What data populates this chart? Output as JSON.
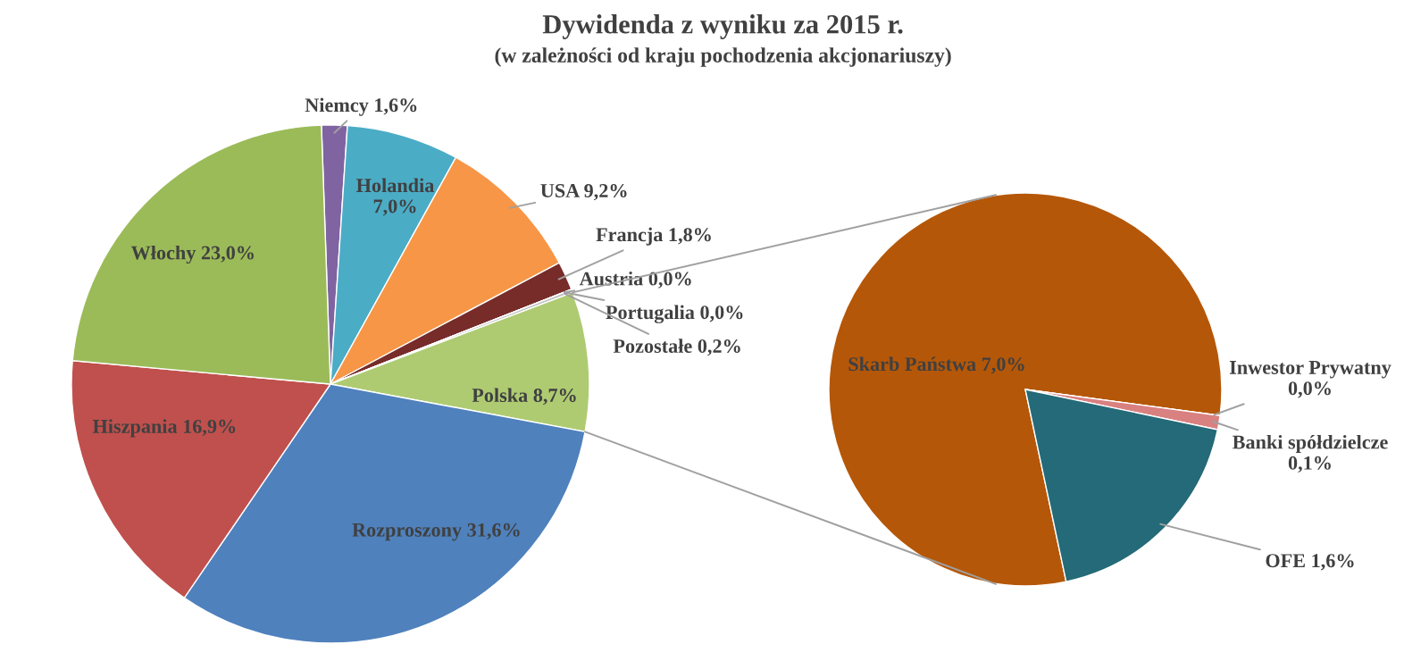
{
  "chart_data": [
    {
      "type": "pie",
      "title": "Dywidenda z wyniku za 2015 r.",
      "subtitle": "(w zależności od kraju pochodzenia akcjonariuszy)",
      "categories": [
        "Niemcy",
        "Holandia",
        "USA",
        "Francja",
        "Austria",
        "Portugalia",
        "Pozostałe",
        "Polska",
        "Rozproszony",
        "Hiszpania",
        "Włochy"
      ],
      "values": [
        1.6,
        7.0,
        9.2,
        1.8,
        0.0,
        0.0,
        0.2,
        8.7,
        31.6,
        16.9,
        23.0
      ],
      "colors": [
        "#8064a2",
        "#4bacc6",
        "#f79646",
        "#772c2a",
        "#a5a5a5",
        "#d0d0d0",
        "#bfbfbf",
        "#aecb72",
        "#4f81bd",
        "#c0504d",
        "#9bbb59"
      ],
      "value_labels": [
        "1,6%",
        "7,0%",
        "9,2%",
        "1,8%",
        "0,0%",
        "0,0%",
        "0,2%",
        "8,7%",
        "31,6%",
        "16,9%",
        "23,0%"
      ]
    },
    {
      "type": "pie",
      "categories": [
        "Skarb Państwa",
        "Inwestor Prywatny",
        "Banki spółdzielcze",
        "OFE"
      ],
      "values": [
        7.0,
        0.0,
        0.1,
        1.6
      ],
      "colors": [
        "#b55708",
        "#a5a5a5",
        "#d98080",
        "#246a78"
      ],
      "value_labels": [
        "7,0%",
        "0,0%",
        "0,1%",
        "1,6%"
      ]
    }
  ]
}
